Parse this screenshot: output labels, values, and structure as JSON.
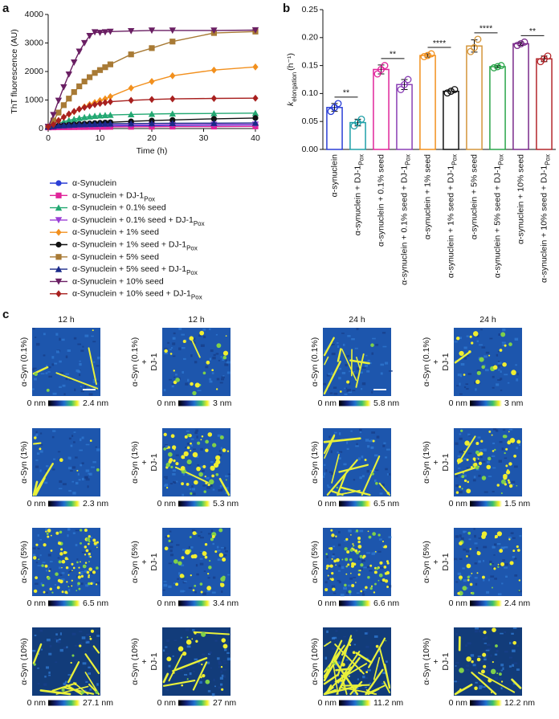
{
  "panel_labels": [
    "a",
    "b",
    "c"
  ],
  "chart_data": [
    {
      "type": "line",
      "xlabel": "Time (h)",
      "ylabel": "ThT fluorescence (AU)",
      "x": [
        0,
        1,
        2,
        3,
        4,
        5,
        6,
        7,
        8,
        9,
        10,
        11,
        12,
        16,
        20,
        24,
        32,
        40
      ],
      "xlim": [
        0,
        40
      ],
      "xticks": [
        0,
        10,
        20,
        30,
        40
      ],
      "ylim": [
        0,
        4000
      ],
      "yticks": [
        0,
        1000,
        2000,
        3000,
        4000
      ],
      "series": [
        {
          "name": "α-Synuclein",
          "color": "#2b3fd6",
          "marker": "circle",
          "values": [
            50,
            55,
            60,
            62,
            65,
            68,
            70,
            72,
            75,
            78,
            80,
            82,
            85,
            95,
            100,
            110,
            120,
            130
          ]
        },
        {
          "name": "α-Synuclein + DJ-1",
          "subscript": "Pox",
          "color": "#e0249a",
          "marker": "square",
          "values": [
            40,
            42,
            45,
            47,
            48,
            50,
            52,
            53,
            55,
            56,
            57,
            58,
            60,
            62,
            65,
            68,
            70,
            75
          ]
        },
        {
          "name": "α-Synuclein + 0.1% seed",
          "color": "#23a872",
          "marker": "triangle",
          "values": [
            60,
            120,
            180,
            240,
            290,
            330,
            365,
            395,
            420,
            440,
            455,
            465,
            475,
            495,
            510,
            520,
            530,
            540
          ]
        },
        {
          "name": "α-Synuclein + 0.1% seed + DJ-1",
          "subscript": "Pox",
          "color": "#9b3fd6",
          "marker": "triangle-down",
          "values": [
            60,
            70,
            80,
            90,
            95,
            100,
            105,
            110,
            112,
            115,
            118,
            120,
            122,
            125,
            130,
            135,
            140,
            145
          ]
        },
        {
          "name": "α-Synuclein + 1% seed",
          "color": "#f2901e",
          "marker": "diamond",
          "values": [
            60,
            150,
            280,
            400,
            500,
            590,
            680,
            760,
            840,
            910,
            980,
            1040,
            1120,
            1420,
            1650,
            1850,
            2050,
            2160
          ]
        },
        {
          "name": "α-Synuclein + 1% seed + DJ-1",
          "subscript": "Pox",
          "color": "#111111",
          "marker": "circle",
          "values": [
            60,
            80,
            100,
            115,
            130,
            145,
            160,
            170,
            180,
            190,
            200,
            210,
            220,
            250,
            280,
            300,
            340,
            370
          ]
        },
        {
          "name": "α-Synuclein + 5% seed",
          "color": "#a87a35",
          "marker": "square",
          "values": [
            60,
            280,
            560,
            820,
            1050,
            1280,
            1480,
            1650,
            1800,
            1950,
            2050,
            2150,
            2250,
            2600,
            2820,
            3050,
            3350,
            3400
          ]
        },
        {
          "name": "α-Synuclein + 5% seed + DJ-1",
          "subscript": "Pox",
          "color": "#1a2a8a",
          "marker": "triangle",
          "values": [
            60,
            80,
            100,
            110,
            120,
            130,
            140,
            145,
            150,
            155,
            160,
            165,
            170,
            175,
            180,
            185,
            190,
            195
          ]
        },
        {
          "name": "α-Synuclein + 10% seed",
          "color": "#6a1f63",
          "marker": "triangle-down",
          "values": [
            60,
            480,
            980,
            1450,
            1900,
            2320,
            2700,
            3000,
            3250,
            3380,
            3360,
            3380,
            3400,
            3420,
            3440,
            3440,
            3440,
            3450
          ]
        },
        {
          "name": "α-Synuclein + 10% seed + DJ-1",
          "subscript": "Pox",
          "color": "#a8201f",
          "marker": "diamond",
          "values": [
            60,
            140,
            280,
            400,
            510,
            600,
            680,
            740,
            790,
            840,
            880,
            910,
            940,
            990,
            1020,
            1040,
            1055,
            1065
          ]
        }
      ]
    },
    {
      "type": "bar",
      "ylabel": {
        "main": "k",
        "subscript": "elongation",
        "unit": "(h⁻¹)"
      },
      "categories": [
        "α-synuclein",
        "α-synuclein + DJ-1",
        "α-synuclein + 0.1% seed",
        "α-synuclein + 0.1% seed + DJ-1",
        "α-synuclein + 1% seed",
        "α-synuclein + 1% seed + DJ-1",
        "α-synuclein + 5% seed",
        "α-synuclein + 5% seed + DJ-1",
        "α-synuclein + 10% seed",
        "α-synuclein + 10% seed + DJ-1"
      ],
      "category_subscripts": [
        null,
        "Pox",
        null,
        "Pox",
        null,
        "Pox",
        null,
        "Pox",
        null,
        "Pox"
      ],
      "values": [
        0.075,
        0.048,
        0.143,
        0.116,
        0.168,
        0.104,
        0.185,
        0.148,
        0.189,
        0.162
      ],
      "errors": [
        0.007,
        0.006,
        0.008,
        0.009,
        0.003,
        0.003,
        0.011,
        0.002,
        0.003,
        0.005
      ],
      "points": [
        [
          0.068,
          0.075,
          0.082
        ],
        [
          0.042,
          0.048,
          0.054
        ],
        [
          0.135,
          0.143,
          0.15
        ],
        [
          0.107,
          0.116,
          0.125
        ],
        [
          0.166,
          0.168,
          0.171
        ],
        [
          0.101,
          0.104,
          0.107
        ],
        [
          0.175,
          0.182,
          0.197
        ],
        [
          0.146,
          0.148,
          0.15
        ],
        [
          0.186,
          0.189,
          0.192
        ],
        [
          0.157,
          0.162,
          0.167
        ]
      ],
      "colors": [
        "#2b3fd6",
        "#1fa0a8",
        "#e0249a",
        "#8a3fb5",
        "#f2901e",
        "#111111",
        "#d4953a",
        "#2aa54a",
        "#7a2a8a",
        "#b3262b"
      ],
      "ylim": [
        0,
        0.25
      ],
      "yticks": [
        {
          "value": 0,
          "label": "0.00"
        },
        {
          "value": 0.05,
          "label": "0.05"
        },
        {
          "value": 0.1,
          "label": "0.10"
        },
        {
          "value": 0.15,
          "label": "0.15"
        },
        {
          "value": 0.2,
          "label": "0.20"
        },
        {
          "value": 0.25,
          "label": "0.25"
        }
      ],
      "significance": [
        "**",
        "**",
        "****",
        "****",
        "**"
      ]
    }
  ],
  "afm": {
    "columns": [
      {
        "header": "12 h",
        "rows": [
          {
            "label": [
              "α-Syn (0.1%)"
            ],
            "scale_min": "0 nm",
            "scale_max": "2.4 nm"
          },
          {
            "label": [
              "α-Syn (1%)"
            ],
            "scale_min": "0 nm",
            "scale_max": "2.3 nm"
          },
          {
            "label": [
              "α-Syn (5%)"
            ],
            "scale_min": "0 nm",
            "scale_max": "6.5 nm"
          },
          {
            "label": [
              "α-Syn (10%)"
            ],
            "scale_min": "0 nm",
            "scale_max": "27.1 nm"
          }
        ]
      },
      {
        "header": "12 h",
        "rows": [
          {
            "label": [
              "α-Syn (0.1%)",
              "+",
              "DJ-1"
            ],
            "scale_min": "0 nm",
            "scale_max": "3 nm"
          },
          {
            "label": [
              "α-Syn (1%)",
              "+",
              "DJ-1"
            ],
            "scale_min": "0 nm",
            "scale_max": "5.3 nm"
          },
          {
            "label": [
              "α-Syn (5%)",
              "+",
              "DJ-1"
            ],
            "scale_min": "0 nm",
            "scale_max": "3.4 nm"
          },
          {
            "label": [
              "α-Syn (10%)",
              "+",
              "DJ-1"
            ],
            "scale_min": "0 nm",
            "scale_max": "27 nm"
          }
        ]
      },
      {
        "header": "24 h",
        "rows": [
          {
            "label": [
              "α-Syn (0.1%)"
            ],
            "scale_min": "0 nm",
            "scale_max": "5.8 nm"
          },
          {
            "label": [
              "α-Syn (1%)"
            ],
            "scale_min": "0 nm",
            "scale_max": "6.5 nm"
          },
          {
            "label": [
              "α-Syn (5%)"
            ],
            "scale_min": "0 nm",
            "scale_max": "6.6 nm"
          },
          {
            "label": [
              "α-Syn (10%)"
            ],
            "scale_min": "0 nm",
            "scale_max": "11.2 nm"
          }
        ]
      },
      {
        "header": "24 h",
        "rows": [
          {
            "label": [
              "α-Syn (0.1%)",
              "+",
              "DJ-1"
            ],
            "scale_min": "0 nm",
            "scale_max": "3 nm"
          },
          {
            "label": [
              "α-Syn (1%)",
              "+",
              "DJ-1"
            ],
            "scale_min": "0 nm",
            "scale_max": "1.5 nm"
          },
          {
            "label": [
              "α-Syn (5%)",
              "+",
              "DJ-1"
            ],
            "scale_min": "0 nm",
            "scale_max": "2.4 nm"
          },
          {
            "label": [
              "α-Syn (10%)",
              "+",
              "DJ-1"
            ],
            "scale_min": "0 nm",
            "scale_max": "12.2 nm"
          }
        ]
      }
    ]
  }
}
